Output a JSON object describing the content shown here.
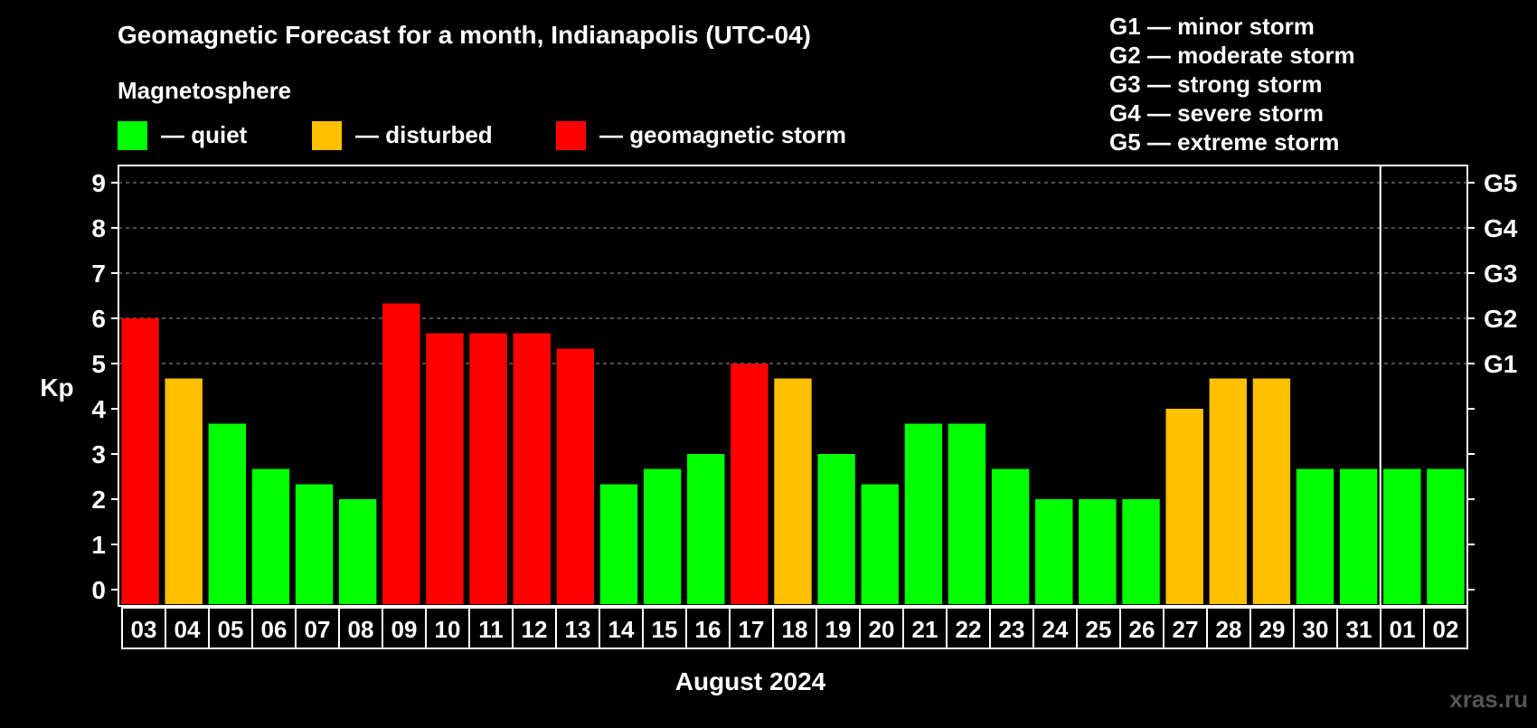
{
  "chart_data": {
    "type": "bar",
    "title": "Geomagnetic Forecast for a month, Indianapolis (UTC-04)",
    "legend_title": "Magnetosphere",
    "legend": [
      {
        "label": "— quiet",
        "color": "#00ff00"
      },
      {
        "label": "— disturbed",
        "color": "#ffc000"
      },
      {
        "label": "— geomagnetic storm",
        "color": "#ff0000"
      }
    ],
    "storm_scale": [
      "G1 — minor storm",
      "G2 — moderate storm",
      "G3 — strong storm",
      "G4 — severe storm",
      "G5 — extreme storm"
    ],
    "ylabel": "Kp",
    "xlabel": "August 2024",
    "ylim": [
      0,
      9
    ],
    "yticks": [
      "0",
      "1",
      "2",
      "3",
      "4",
      "5",
      "6",
      "7",
      "8",
      "9"
    ],
    "right_ticks": [
      {
        "value": 5,
        "label": "G1"
      },
      {
        "value": 6,
        "label": "G2"
      },
      {
        "value": 7,
        "label": "G3"
      },
      {
        "value": 8,
        "label": "G4"
      },
      {
        "value": 9,
        "label": "G5"
      }
    ],
    "gridlines": [
      5,
      6,
      7,
      8,
      9
    ],
    "month_boundary_after": "31",
    "categories": [
      "03",
      "04",
      "05",
      "06",
      "07",
      "08",
      "09",
      "10",
      "11",
      "12",
      "13",
      "14",
      "15",
      "16",
      "17",
      "18",
      "19",
      "20",
      "21",
      "22",
      "23",
      "24",
      "25",
      "26",
      "27",
      "28",
      "29",
      "30",
      "31",
      "01",
      "02"
    ],
    "values": [
      6.0,
      4.67,
      3.67,
      2.67,
      2.33,
      2.0,
      6.33,
      5.67,
      5.67,
      5.67,
      5.33,
      2.33,
      2.67,
      3.0,
      5.0,
      4.67,
      3.0,
      2.33,
      3.67,
      3.67,
      2.67,
      2.0,
      2.0,
      2.0,
      4.0,
      4.67,
      4.67,
      2.67,
      2.67,
      2.67,
      2.67
    ],
    "levels": [
      "storm",
      "disturbed",
      "quiet",
      "quiet",
      "quiet",
      "quiet",
      "storm",
      "storm",
      "storm",
      "storm",
      "storm",
      "quiet",
      "quiet",
      "quiet",
      "storm",
      "disturbed",
      "quiet",
      "quiet",
      "quiet",
      "quiet",
      "quiet",
      "quiet",
      "quiet",
      "quiet",
      "disturbed",
      "disturbed",
      "disturbed",
      "quiet",
      "quiet",
      "quiet",
      "quiet"
    ],
    "colors": {
      "quiet": "#00ff00",
      "disturbed": "#ffc000",
      "storm": "#ff0000"
    },
    "watermark": "xras.ru"
  }
}
